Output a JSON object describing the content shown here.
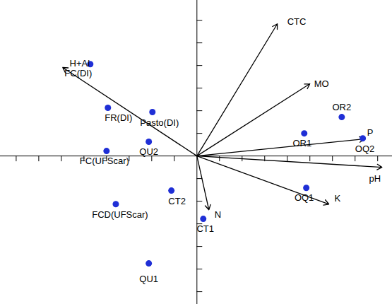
{
  "chart_data": {
    "type": "scatter",
    "xlim": [
      -8.7,
      8.65
    ],
    "ylim": [
      -6.56,
      6.88
    ],
    "xticks": [
      -8,
      -7,
      -6,
      -5,
      -4,
      -3,
      -2,
      -1,
      1,
      2,
      3,
      4,
      5,
      6,
      7,
      8
    ],
    "yticks": [
      -6,
      -5,
      -4,
      -3,
      -2,
      -1,
      1,
      2,
      3,
      4,
      5,
      6
    ],
    "tick_labels": false,
    "grid": false,
    "points": {
      "color": "#1f2fd6",
      "labels": [
        "FC(DI)",
        "FR(DI)",
        "Pasto(DI)",
        "QU2",
        "FC(UFScar)",
        "CT2",
        "FCD(UFScar)",
        "CT1",
        "QU1",
        "OR2",
        "OR1",
        "OQ2",
        "OQ1"
      ],
      "x": [
        -4.72,
        -3.94,
        -1.97,
        -2.13,
        -4.0,
        -1.13,
        -3.59,
        0.28,
        -2.13,
        6.41,
        4.75,
        7.34,
        4.84
      ],
      "y": [
        4.06,
        2.13,
        1.94,
        0.63,
        0.22,
        -1.53,
        -2.13,
        -2.78,
        -4.75,
        1.72,
        1.0,
        0.78,
        -1.41
      ]
    },
    "vectors": {
      "color": "#000000",
      "labels": [
        "H+Al",
        "CTC",
        "MO",
        "P",
        "pH",
        "K",
        "N"
      ],
      "x": [
        -5.94,
        3.56,
        5.0,
        7.41,
        8.19,
        5.84,
        0.53
      ],
      "y": [
        3.91,
        5.84,
        3.19,
        0.75,
        -0.5,
        -2.13,
        -2.38
      ]
    }
  }
}
